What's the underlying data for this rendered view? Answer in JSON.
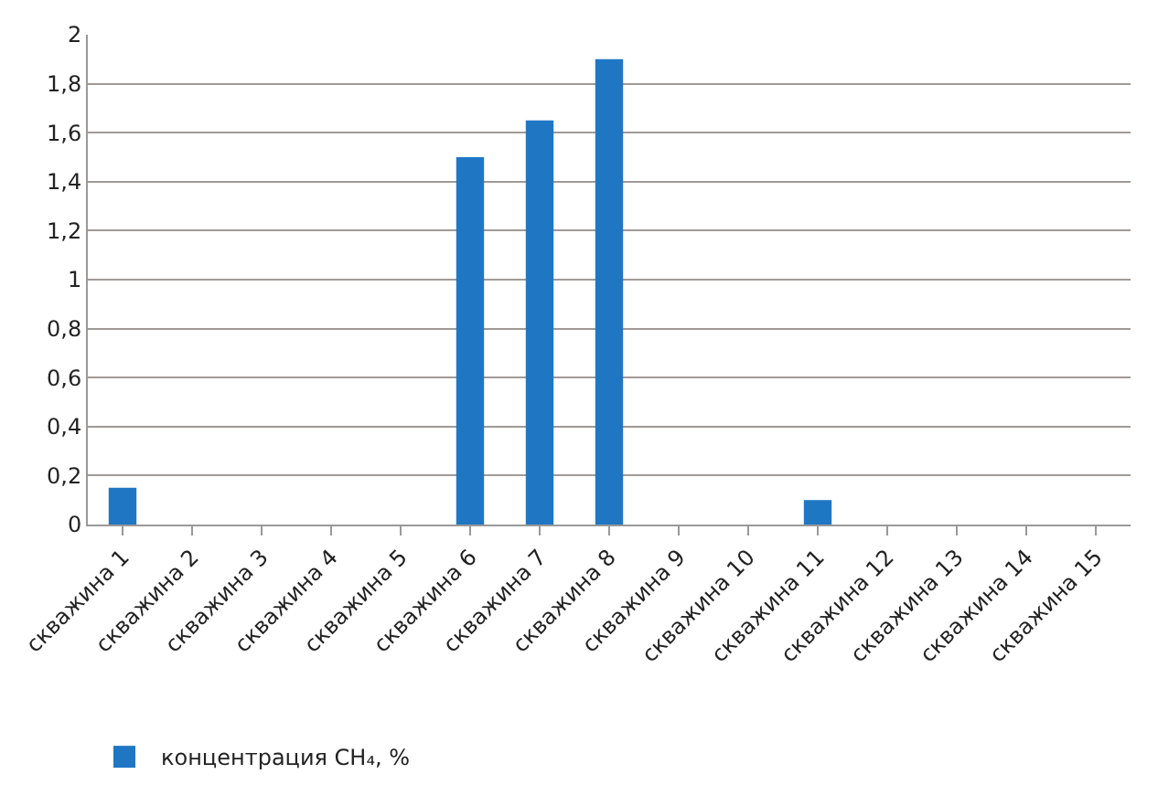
{
  "chart_data": {
    "type": "bar",
    "categories": [
      "скважина 1",
      "скважина 2",
      "скважина 3",
      "скважина 4",
      "скважина 5",
      "скважина 6",
      "скважина 7",
      "скважина 8",
      "скважина 9",
      "скважина 10",
      "скважина 11",
      "скважина 12",
      "скважина 13",
      "скважина 14",
      "скважина 15"
    ],
    "series": [
      {
        "name": "концентрация CH₄, %",
        "color": "#1f77c4",
        "values": [
          0.15,
          0,
          0,
          0,
          0,
          1.5,
          1.65,
          1.9,
          0,
          0,
          0.1,
          0,
          0,
          0,
          0
        ]
      }
    ],
    "ylim": [
      0,
      2
    ],
    "yticks": [
      0,
      {
        "value": 0.2,
        "label": "0,2"
      },
      {
        "value": 0.4,
        "label": "0,4"
      },
      {
        "value": 0.6,
        "label": "0,6"
      },
      {
        "value": 0.8,
        "label": "0,8"
      },
      1,
      {
        "value": 1.2,
        "label": "1,2"
      },
      {
        "value": 1.4,
        "label": "1,4"
      },
      {
        "value": 1.6,
        "label": "1,6"
      },
      {
        "value": 1.8,
        "label": "1,8"
      },
      2
    ],
    "grid": "y",
    "legend": "bottom left"
  }
}
